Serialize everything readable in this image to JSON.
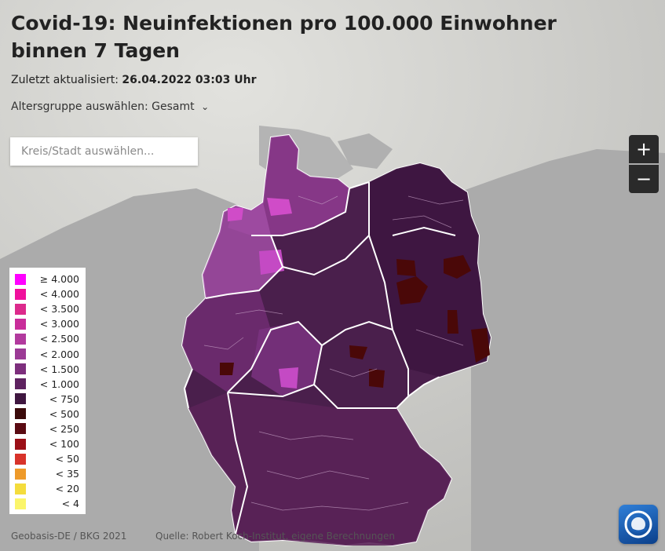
{
  "header": {
    "title": "Covid-19: Neuinfektionen pro 100.000 Einwohner binnen 7 Tagen",
    "updated_label": "Zuletzt aktualisiert:",
    "updated_value": "26.04.2022 03:03 Uhr",
    "age_label": "Altersgruppe auswählen:",
    "age_value": "Gesamt"
  },
  "search": {
    "placeholder": "Kreis/Stadt auswählen..."
  },
  "zoom": {
    "in_label": "+",
    "out_label": "−"
  },
  "legend": {
    "items": [
      {
        "label": "≥ 4.000",
        "color": "#ff00ff"
      },
      {
        "label": "< 4.000",
        "color": "#f0109c"
      },
      {
        "label": "< 3.500",
        "color": "#dc2a8c"
      },
      {
        "label": "< 3.000",
        "color": "#c92d9a"
      },
      {
        "label": "< 2.500",
        "color": "#b23a9e"
      },
      {
        "label": "< 2.000",
        "color": "#9b3a95"
      },
      {
        "label": "< 1.500",
        "color": "#7d2f7d"
      },
      {
        "label": "< 1.000",
        "color": "#5e2260"
      },
      {
        "label": "< 750",
        "color": "#3f1740"
      },
      {
        "label": "< 500",
        "color": "#3a0a0a"
      },
      {
        "label": "< 250",
        "color": "#5a0a12"
      },
      {
        "label": "< 100",
        "color": "#9b0f17"
      },
      {
        "label": "< 50",
        "color": "#d8332a"
      },
      {
        "label": "< 35",
        "color": "#ee9a2a"
      },
      {
        "label": "< 20",
        "color": "#f4dc3c"
      },
      {
        "label": "< 4",
        "color": "#fbf56a"
      }
    ]
  },
  "footer": {
    "geobasis": "Geobasis-DE / BKG 2021",
    "source": "Quelle: Robert Koch-Institut, eigene Berechnungen"
  },
  "colors": {
    "land_other": "#a9a9a9",
    "sea": "#d4d4d0",
    "germany_base": "#4a1f4c"
  }
}
